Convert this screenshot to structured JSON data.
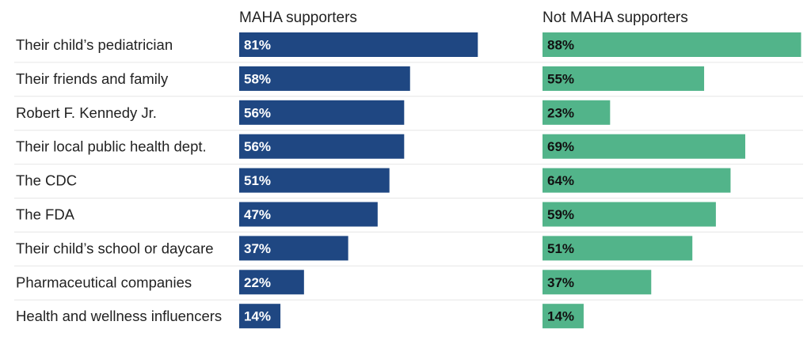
{
  "chart_data": {
    "type": "bar",
    "orientation": "horizontal",
    "categories": [
      "Their child’s pediatrician",
      "Their friends and family",
      "Robert F. Kennedy Jr.",
      "Their local public health dept.",
      "The CDC",
      "The FDA",
      "Their child’s school or daycare",
      "Pharmaceutical companies",
      "Health and wellness influencers"
    ],
    "series": [
      {
        "name": "MAHA supporters",
        "color": "#1f4782",
        "label_color": "#ffffff",
        "values": [
          81,
          58,
          56,
          56,
          51,
          47,
          37,
          22,
          14
        ]
      },
      {
        "name": "Not MAHA supporters",
        "color": "#52b48a",
        "label_color": "#111111",
        "values": [
          88,
          55,
          23,
          69,
          64,
          59,
          51,
          37,
          14
        ]
      }
    ],
    "value_suffix": "%",
    "xlim": [
      0,
      100
    ],
    "grid": false,
    "row_separators": true
  }
}
